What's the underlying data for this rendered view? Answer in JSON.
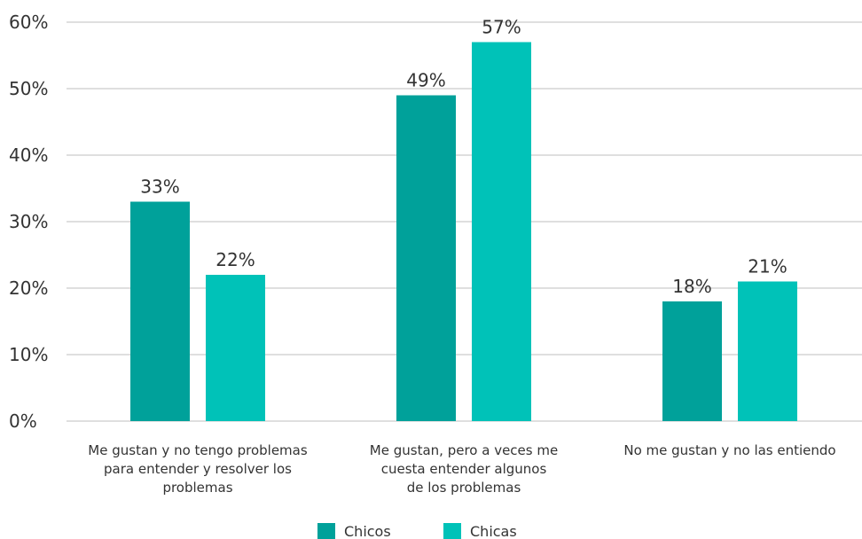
{
  "chart_data": {
    "type": "bar",
    "title": "",
    "xlabel": "",
    "ylabel": "",
    "ylim": [
      0,
      60
    ],
    "yticks": [
      0,
      10,
      20,
      30,
      40,
      50,
      60
    ],
    "ytick_labels": [
      "0%",
      "10%",
      "20%",
      "30%",
      "40%",
      "50%",
      "60%"
    ],
    "grid": true,
    "legend_position": "bottom",
    "categories": [
      [
        "Me gustan y no tengo problemas",
        "para entender y resolver los",
        "problemas"
      ],
      [
        "Me gustan, pero a veces me",
        "cuesta entender algunos",
        "de los problemas"
      ],
      [
        "No me gustan y no las entiendo"
      ]
    ],
    "series": [
      {
        "name": "Chicos",
        "color": "#00a19a",
        "values": [
          33,
          49,
          18
        ],
        "labels": [
          "33%",
          "49%",
          "18%"
        ]
      },
      {
        "name": "Chicas",
        "color": "#00c2b8",
        "values": [
          22,
          57,
          21
        ],
        "labels": [
          "22%",
          "57%",
          "21%"
        ]
      }
    ]
  }
}
